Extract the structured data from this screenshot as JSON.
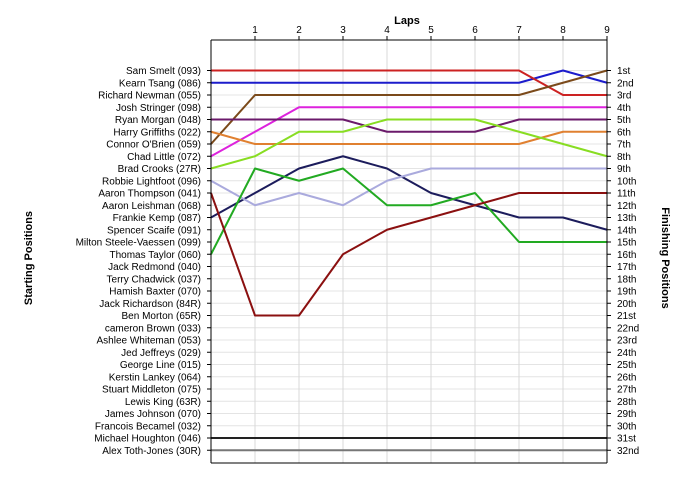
{
  "chart_data": {
    "type": "line",
    "title": "Laps",
    "ylabel_left": "Starting Positions",
    "ylabel_right": "Finishing Positions",
    "x": [
      0,
      1,
      2,
      3,
      4,
      5,
      6,
      7,
      8,
      9
    ],
    "x_tick_labels": [
      "1",
      "2",
      "3",
      "4",
      "5",
      "6",
      "7",
      "8",
      "9"
    ],
    "ylim": [
      1,
      32
    ],
    "y_inverted": true,
    "grid": true,
    "starting_labels": [
      "Sam Smelt (093)",
      "Kearn Tsang (086)",
      "Richard Newman (055)",
      "Josh Stringer (098)",
      "Ryan Morgan (048)",
      "Harry Griffiths (022)",
      "Connor O'Brien (059)",
      "Chad Little (072)",
      "Brad Crooks (27R)",
      "Robbie Lightfoot (096)",
      "Aaron Thompson (041)",
      "Aaron Leishman (068)",
      "Frankie Kemp (087)",
      "Spencer Scaife (091)",
      "Milton Steele-Vaessen (099)",
      "Thomas Taylor (060)",
      "Jack Redmond (040)",
      "Terry Chadwick (037)",
      "Hamish Baxter (070)",
      "Jack Richardson (84R)",
      "Ben Morton (65R)",
      "cameron Brown (033)",
      "Ashlee Whiteman (053)",
      "Jed Jeffreys (029)",
      "George Line (015)",
      "Kerstin Lankey (064)",
      "Stuart Middleton (075)",
      "Lewis King (63R)",
      "James Johnson (070)",
      "Francois Becamel (032)",
      "Michael Houghton (046)",
      "Alex Toth-Jones (30R)"
    ],
    "finishing_labels": [
      "1st",
      "2nd",
      "3rd",
      "4th",
      "5th",
      "6th",
      "7th",
      "8th",
      "9th",
      "10th",
      "11th",
      "12th",
      "13th",
      "14th",
      "15th",
      "16th",
      "17th",
      "18th",
      "19th",
      "20th",
      "21st",
      "22nd",
      "23rd",
      "24th",
      "25th",
      "26th",
      "27th",
      "28th",
      "29th",
      "30th",
      "31st",
      "32nd"
    ],
    "series": [
      {
        "color": "#1c1ccc",
        "values": [
          2,
          2,
          2,
          2,
          2,
          2,
          2,
          2,
          1,
          2
        ]
      },
      {
        "color": "#cc2222",
        "values": [
          1,
          1,
          1,
          1,
          1,
          1,
          1,
          1,
          3,
          3
        ]
      },
      {
        "color": "#222222",
        "values": [
          31,
          31,
          31,
          31,
          31,
          31,
          31,
          31,
          31,
          31
        ]
      },
      {
        "color": "#777777",
        "values": [
          32,
          32,
          32,
          32,
          32,
          32,
          32,
          32,
          32,
          32
        ]
      },
      {
        "color": "#7b4a1a",
        "values": [
          7,
          3,
          3,
          3,
          3,
          3,
          3,
          3,
          2,
          1
        ]
      },
      {
        "color": "#dd22dd",
        "values": [
          8,
          6,
          4,
          4,
          4,
          4,
          4,
          4,
          4,
          4
        ]
      },
      {
        "color": "#6b1a6b",
        "values": [
          5,
          5,
          5,
          5,
          6,
          6,
          6,
          5,
          5,
          5
        ]
      },
      {
        "color": "#e08030",
        "values": [
          6,
          7,
          7,
          7,
          7,
          7,
          7,
          7,
          6,
          6
        ]
      },
      {
        "color": "#88dd22",
        "values": [
          9,
          8,
          6,
          6,
          5,
          5,
          5,
          6,
          7,
          8
        ]
      },
      {
        "color": "#1c1c5c",
        "values": [
          13,
          11,
          9,
          8,
          9,
          11,
          12,
          13,
          13,
          14
        ]
      },
      {
        "color": "#aaaadd",
        "values": [
          10,
          12,
          11,
          12,
          10,
          9,
          9,
          9,
          9,
          9
        ]
      },
      {
        "color": "#22aa22",
        "values": [
          16,
          9,
          10,
          9,
          12,
          12,
          11,
          15,
          15,
          15
        ]
      },
      {
        "color": "#8b1010",
        "values": [
          11,
          21,
          21,
          16,
          14,
          13,
          12,
          11,
          11,
          11
        ]
      }
    ]
  }
}
